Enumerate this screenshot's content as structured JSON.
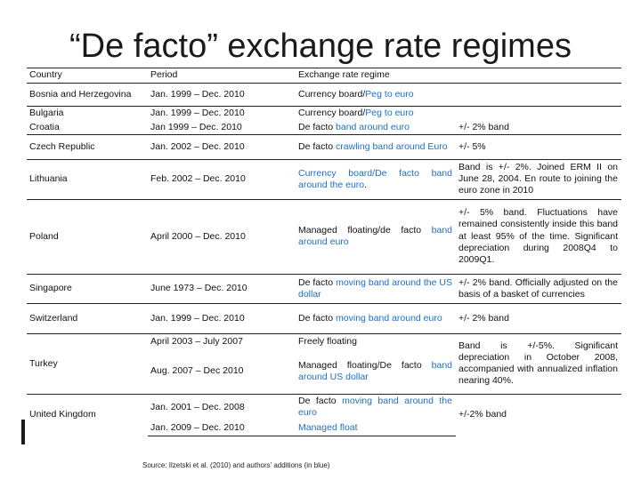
{
  "title": "“De facto” exchange rate regimes",
  "header": {
    "country": "Country",
    "period": "Period",
    "regime": "Exchange rate regime"
  },
  "rows": {
    "bosnia": {
      "country": "Bosnia and Herzegovina",
      "period": "Jan. 1999 – Dec. 2010",
      "regime_a": "Currency board/",
      "regime_b": "Peg to euro"
    },
    "bulgaria": {
      "country": "Bulgaria",
      "period": "Jan. 1999 – Dec. 2010",
      "regime_a": "Currency board/",
      "regime_b": "Peg to euro"
    },
    "croatia": {
      "country": "Croatia",
      "period": "Jan 1999 – Dec. 2010",
      "regime_a": "De facto ",
      "regime_b": "band around euro",
      "note": "+/- 2% band"
    },
    "czech": {
      "country": "Czech Republic",
      "period": "Jan. 2002 – Dec. 2010",
      "regime_a": "De facto ",
      "regime_b": "crawling band around Euro",
      "note": "+/- 5%"
    },
    "lithuania": {
      "country": "Lithuania",
      "period": "Feb. 2002 – Dec. 2010",
      "regime_a": "Currency board/",
      "regime_b": "De facto band around the euro",
      "regime_c": ".",
      "note": "Band is +/- 2%. Joined ERM II on June 28, 2004. En route to joining the euro zone in 2010"
    },
    "poland": {
      "country": "Poland",
      "period": "April 2000 – Dec. 2010",
      "regime_a": "Managed floating/de facto ",
      "regime_b": "band around euro",
      "note": "+/- 5% band. Fluctuations have remained consistently inside this band at least 95% of the time. Significant depreciation during 2008Q4 to 2009Q1."
    },
    "singapore": {
      "country": "Singapore",
      "period": "June 1973 – Dec. 2010",
      "regime_a": "De facto ",
      "regime_b": "moving band around the US dollar",
      "note": "+/- 2% band. Officially adjusted on the basis of a basket of currencies"
    },
    "switzerland": {
      "country": "Switzerland",
      "period": "Jan. 1999 – Dec. 2010",
      "regime_a": "De facto ",
      "regime_b": "moving band around euro",
      "note": "+/- 2% band"
    },
    "turkey": {
      "country": "Turkey",
      "period_1": "April 2003 – July 2007",
      "regime_1": "Freely floating",
      "period_2": "Aug. 2007 – Dec 2010",
      "regime_2a": "Managed floating/De facto ",
      "regime_2b": "band around US dollar",
      "note": "Band is +/-5%. Significant depreciation in October 2008, accompanied with annualized inflation nearing 40%."
    },
    "uk": {
      "country": "United Kingdom",
      "period_1": "Jan. 2001 – Dec. 2008",
      "regime_1a": "De facto ",
      "regime_1b": "moving band around the euro",
      "period_2": "Jan. 2009 – Dec. 2010",
      "regime_2": "Managed float",
      "note": "+/-2% band"
    }
  },
  "source": "Source: Ilzetski et al. (2010) and authors’ additions (in blue)",
  "colors": {
    "accent_blue": "#1f6fc5",
    "text": "#111111"
  }
}
